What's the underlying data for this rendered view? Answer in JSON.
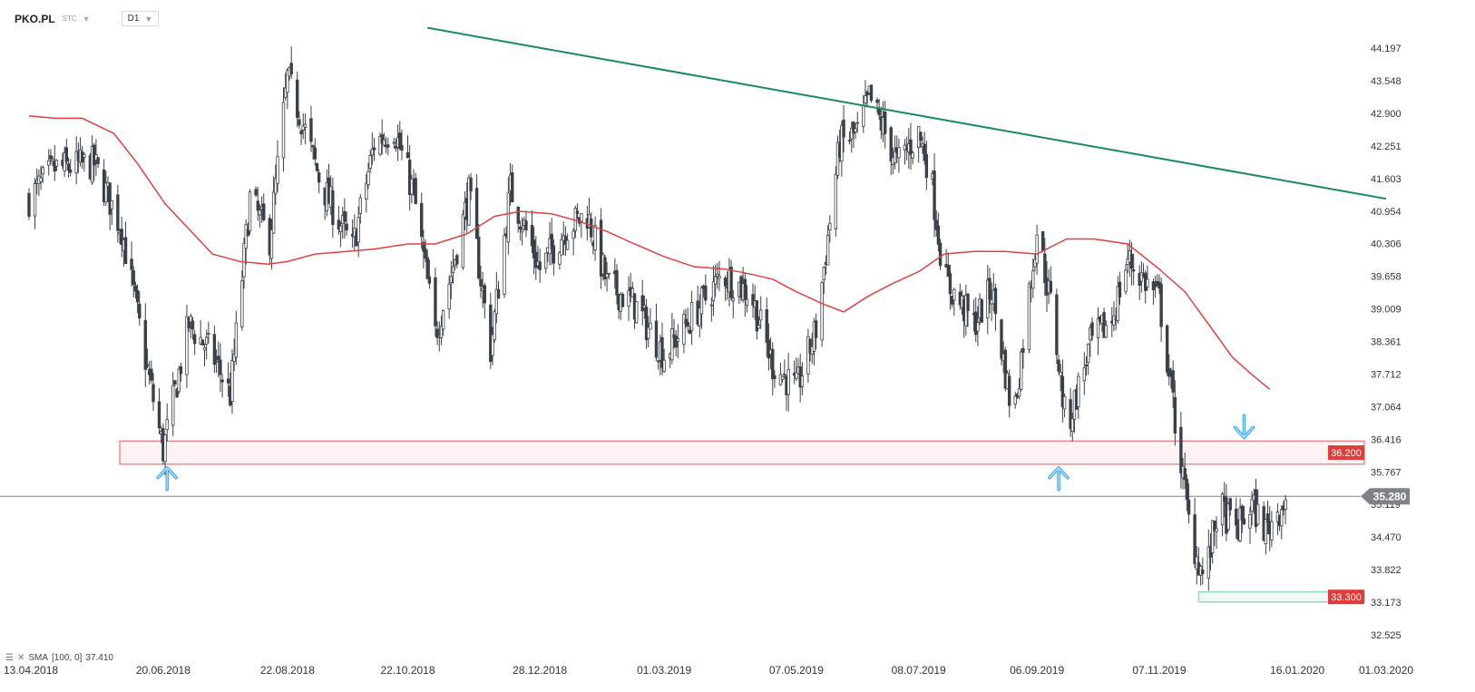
{
  "header": {
    "symbol": "PKO.PL",
    "sub": "STC",
    "timeframe": "D1"
  },
  "indicator": {
    "label": "SMA",
    "params": "[100,  0]",
    "value": "37.410"
  },
  "colors": {
    "sma": "#e04040",
    "trendline": "#1a8a5a",
    "support_zone": "#f08a8a",
    "low_zone": "#8fd8bf",
    "arrow": "#3da8f0",
    "candle": "#3a4048",
    "label_red": "#e03c3c",
    "last_price": "#7f8389"
  },
  "chart_data": {
    "type": "candlestick",
    "y_ticks": [
      "44.197",
      "43.548",
      "42.900",
      "42.251",
      "41.603",
      "40.954",
      "40.306",
      "39.658",
      "39.009",
      "38.361",
      "37.712",
      "37.064",
      "36.416",
      "35.767",
      "35.119",
      "34.470",
      "33.822",
      "33.173",
      "32.525"
    ],
    "ylim": [
      32.525,
      44.197
    ],
    "x_ticks": [
      "13.04.2018",
      "20.06.2018",
      "22.08.2018",
      "22.10.2018",
      "28.12.2018",
      "01.03.2019",
      "07.05.2019",
      "08.07.2019",
      "06.09.2019",
      "07.11.2019",
      "16.01.2020",
      "01.03.2020"
    ],
    "x_range": [
      "13.04.2018",
      "01.03.2020"
    ],
    "last_price": {
      "value": 35.28,
      "label": "35.280"
    },
    "support_zone": {
      "low": 35.92,
      "high": 36.38,
      "label": "36.200",
      "from": "29.05.2018",
      "to": "01.03.2020"
    },
    "low_zone": {
      "low": 33.18,
      "high": 33.38,
      "label": "33.300",
      "from": "27.11.2019",
      "to": "01.03.2020"
    },
    "trendline": [
      {
        "date": "01.11.2018",
        "price": 44.6
      },
      {
        "date": "01.03.2020",
        "price": 41.2
      }
    ],
    "arrows": [
      {
        "date": "22.06.2018",
        "direction": "up"
      },
      {
        "date": "17.09.2019",
        "direction": "up"
      },
      {
        "date": "20.12.2019",
        "direction": "down"
      }
    ],
    "close_path": [
      [
        "13.04.2018",
        41.2
      ],
      [
        "26.04.2018",
        41.8
      ],
      [
        "16.05.2018",
        41.9
      ],
      [
        "30.05.2018",
        40.6
      ],
      [
        "12.06.2018",
        37.8
      ],
      [
        "20.06.2018",
        36.2
      ],
      [
        "03.07.2018",
        38.7
      ],
      [
        "15.07.2018",
        38.1
      ],
      [
        "24.07.2018",
        37.3
      ],
      [
        "03.08.2018",
        41.2
      ],
      [
        "13.08.2018",
        40.4
      ],
      [
        "22.08.2018",
        43.6
      ],
      [
        "29.08.2018",
        42.8
      ],
      [
        "08.09.2018",
        41.5
      ],
      [
        "24.09.2018",
        40.2
      ],
      [
        "05.10.2018",
        42.3
      ],
      [
        "15.10.2018",
        42.6
      ],
      [
        "25.10.2018",
        41.3
      ],
      [
        "05.11.2018",
        38.5
      ],
      [
        "13.11.2018",
        39.7
      ],
      [
        "22.11.2018",
        41.3
      ],
      [
        "03.12.2018",
        38.2
      ],
      [
        "13.12.2018",
        41.4
      ],
      [
        "28.12.2018",
        39.8
      ],
      [
        "10.01.2019",
        40.6
      ],
      [
        "21.01.2019",
        40.9
      ],
      [
        "31.01.2019",
        39.5
      ],
      [
        "14.02.2019",
        39.1
      ],
      [
        "01.03.2019",
        38.1
      ],
      [
        "16.03.2019",
        38.9
      ],
      [
        "31.03.2019",
        39.7
      ],
      [
        "14.04.2019",
        39.3
      ],
      [
        "25.04.2019",
        37.9
      ],
      [
        "07.05.2019",
        37.4
      ],
      [
        "17.05.2019",
        38.6
      ],
      [
        "29.05.2019",
        42.3
      ],
      [
        "07.06.2019",
        42.5
      ],
      [
        "13.06.2019",
        43.2
      ],
      [
        "20.06.2019",
        42.6
      ],
      [
        "27.06.2019",
        41.9
      ],
      [
        "08.07.2019",
        42.5
      ],
      [
        "14.07.2019",
        41.7
      ],
      [
        "21.07.2019",
        39.6
      ],
      [
        "05.08.2019",
        38.7
      ],
      [
        "14.08.2019",
        39.4
      ],
      [
        "25.08.2019",
        36.8
      ],
      [
        "06.09.2019",
        40.6
      ],
      [
        "14.09.2019",
        38.9
      ],
      [
        "21.09.2019",
        36.6
      ],
      [
        "03.10.2019",
        38.3
      ],
      [
        "14.10.2019",
        38.8
      ],
      [
        "22.10.2019",
        40.0
      ],
      [
        "07.11.2019",
        39.2
      ],
      [
        "15.11.2019",
        36.8
      ],
      [
        "23.11.2019",
        34.5
      ],
      [
        "30.11.2019",
        33.6
      ],
      [
        "07.12.2019",
        35.1
      ],
      [
        "16.12.2019",
        34.6
      ],
      [
        "24.12.2019",
        35.1
      ],
      [
        "31.12.2019",
        34.6
      ],
      [
        "11.01.2020",
        35.3
      ]
    ],
    "sma_path": [
      [
        "13.04.2018",
        42.85
      ],
      [
        "26.04.2018",
        42.8
      ],
      [
        "10.05.2018",
        42.8
      ],
      [
        "26.05.2018",
        42.5
      ],
      [
        "07.06.2018",
        41.9
      ],
      [
        "21.06.2018",
        41.1
      ],
      [
        "03.07.2018",
        40.6
      ],
      [
        "15.07.2018",
        40.1
      ],
      [
        "29.07.2018",
        39.95
      ],
      [
        "12.08.2018",
        39.9
      ],
      [
        "22.08.2018",
        39.95
      ],
      [
        "05.09.2018",
        40.1
      ],
      [
        "21.09.2018",
        40.15
      ],
      [
        "05.10.2018",
        40.2
      ],
      [
        "22.10.2018",
        40.3
      ],
      [
        "05.11.2018",
        40.3
      ],
      [
        "21.11.2018",
        40.5
      ],
      [
        "05.12.2018",
        40.85
      ],
      [
        "18.12.2018",
        40.95
      ],
      [
        "03.01.2019",
        40.9
      ],
      [
        "17.01.2019",
        40.75
      ],
      [
        "31.01.2019",
        40.55
      ],
      [
        "14.02.2019",
        40.3
      ],
      [
        "01.03.2019",
        40.05
      ],
      [
        "16.03.2019",
        39.85
      ],
      [
        "01.04.2019",
        39.8
      ],
      [
        "14.04.2019",
        39.7
      ],
      [
        "25.04.2019",
        39.6
      ],
      [
        "07.05.2019",
        39.35
      ],
      [
        "21.05.2019",
        39.1
      ],
      [
        "31.05.2019",
        38.95
      ],
      [
        "12.06.2019",
        39.25
      ],
      [
        "24.06.2019",
        39.5
      ],
      [
        "08.07.2019",
        39.75
      ],
      [
        "21.07.2019",
        40.1
      ],
      [
        "05.08.2019",
        40.15
      ],
      [
        "21.08.2019",
        40.15
      ],
      [
        "06.09.2019",
        40.1
      ],
      [
        "21.09.2019",
        40.4
      ],
      [
        "05.10.2019",
        40.4
      ],
      [
        "22.10.2019",
        40.3
      ],
      [
        "07.11.2019",
        39.8
      ],
      [
        "20.11.2019",
        39.35
      ],
      [
        "03.12.2019",
        38.65
      ],
      [
        "14.12.2019",
        38.05
      ],
      [
        "24.12.2019",
        37.7
      ],
      [
        "02.01.2020",
        37.41
      ]
    ]
  }
}
